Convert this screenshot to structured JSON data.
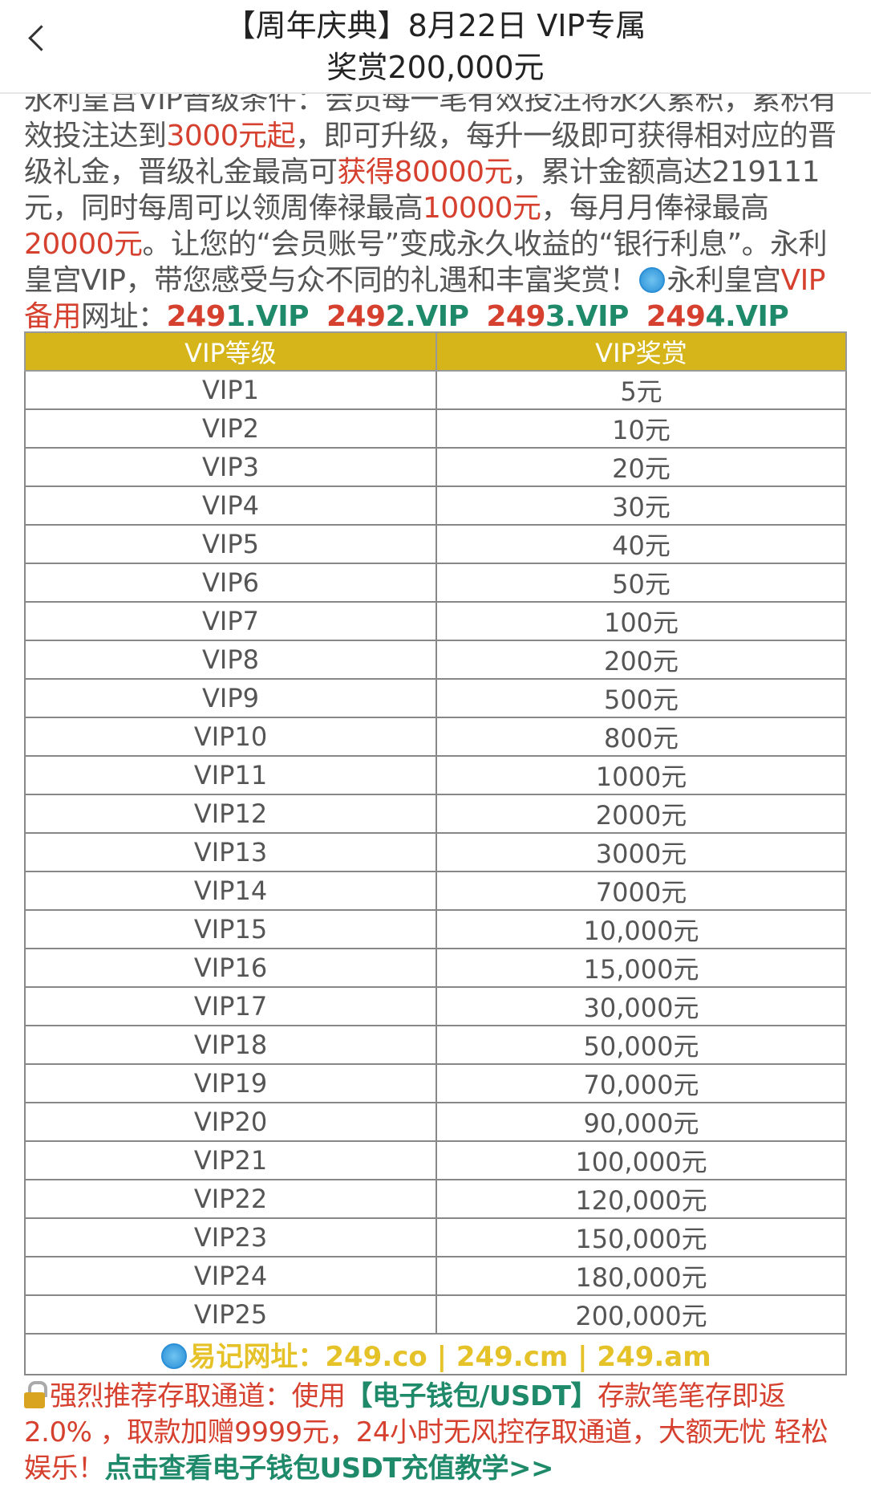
{
  "header": {
    "title_line1": "【周年庆典】8月22日 VIP专属",
    "title_line2": "奖赏200,000元",
    "back_icon": "chevron-left-icon"
  },
  "intro": [
    {
      "text": "永利皇宫VIP晋级条件：会员每一笔有效投注将永久累积，累积有效投注达到",
      "style": ""
    },
    {
      "text": "3000元起",
      "style": "red"
    },
    {
      "text": "，即可升级，每升一级即可获得相对应的晋级礼金，晋级礼金最高可",
      "style": ""
    },
    {
      "text": "获得80000元",
      "style": "red"
    },
    {
      "text": "，累计金额高达219111元，同时每周可以领周俸禄最高",
      "style": ""
    },
    {
      "text": "10000元",
      "style": "red"
    },
    {
      "text": "，每月月俸禄最高",
      "style": ""
    },
    {
      "text": "20000元",
      "style": "red"
    },
    {
      "text": "。让您的“会员账号”变成永久收益的“银行利息”。永利皇宫VIP，带您感受与众不同的礼遇和丰富奖赏！",
      "style": ""
    },
    {
      "text": "",
      "style": "globe"
    },
    {
      "text": "永利皇宫",
      "style": ""
    },
    {
      "text": "VIP备用",
      "style": "red"
    },
    {
      "text": "网址：",
      "style": ""
    },
    {
      "text": "249",
      "style": "redb"
    },
    {
      "text": "1.VIP",
      "style": "grn"
    },
    {
      "text": "  ",
      "style": ""
    },
    {
      "text": "249",
      "style": "redb"
    },
    {
      "text": "2.VIP",
      "style": "grn"
    },
    {
      "text": "  ",
      "style": ""
    },
    {
      "text": "249",
      "style": "redb"
    },
    {
      "text": "3.VIP",
      "style": "grn"
    },
    {
      "text": "  ",
      "style": ""
    },
    {
      "text": "249",
      "style": "redb"
    },
    {
      "text": "4.VIP",
      "style": "grn"
    }
  ],
  "table": {
    "headers": [
      "VIP等级",
      "VIP奖赏"
    ],
    "rows": [
      [
        "VIP1",
        "5元"
      ],
      [
        "VIP2",
        "10元"
      ],
      [
        "VIP3",
        "20元"
      ],
      [
        "VIP4",
        "30元"
      ],
      [
        "VIP5",
        "40元"
      ],
      [
        "VIP6",
        "50元"
      ],
      [
        "VIP7",
        "100元"
      ],
      [
        "VIP8",
        "200元"
      ],
      [
        "VIP9",
        "500元"
      ],
      [
        "VIP10",
        "800元"
      ],
      [
        "VIP11",
        "1000元"
      ],
      [
        "VIP12",
        "2000元"
      ],
      [
        "VIP13",
        "3000元"
      ],
      [
        "VIP14",
        "7000元"
      ],
      [
        "VIP15",
        "10,000元"
      ],
      [
        "VIP16",
        "15,000元"
      ],
      [
        "VIP17",
        "30,000元"
      ],
      [
        "VIP18",
        "50,000元"
      ],
      [
        "VIP19",
        "70,000元"
      ],
      [
        "VIP20",
        "90,000元"
      ],
      [
        "VIP21",
        "100,000元"
      ],
      [
        "VIP22",
        "120,000元"
      ],
      [
        "VIP23",
        "150,000元"
      ],
      [
        "VIP24",
        "180,000元"
      ],
      [
        "VIP25",
        "200,000元"
      ]
    ],
    "footer": "易记网址：249.co | 249.cm | 249.am"
  },
  "tail": {
    "text1": "强烈推荐存取通道：使用",
    "highlight": "【电子钱包/USDT】",
    "text2": "存款笔笔存即返2.0% ，取款加赠9999元，24小时无风控存取通道，大额无忧 轻松娱乐！",
    "link": "点击查看电子钱包USDT充值教学>>"
  },
  "colors": {
    "red": "#d6402f",
    "green": "#1f8a69",
    "header_yellow": "#d6b51a",
    "url_yellow": "#e6c229"
  }
}
